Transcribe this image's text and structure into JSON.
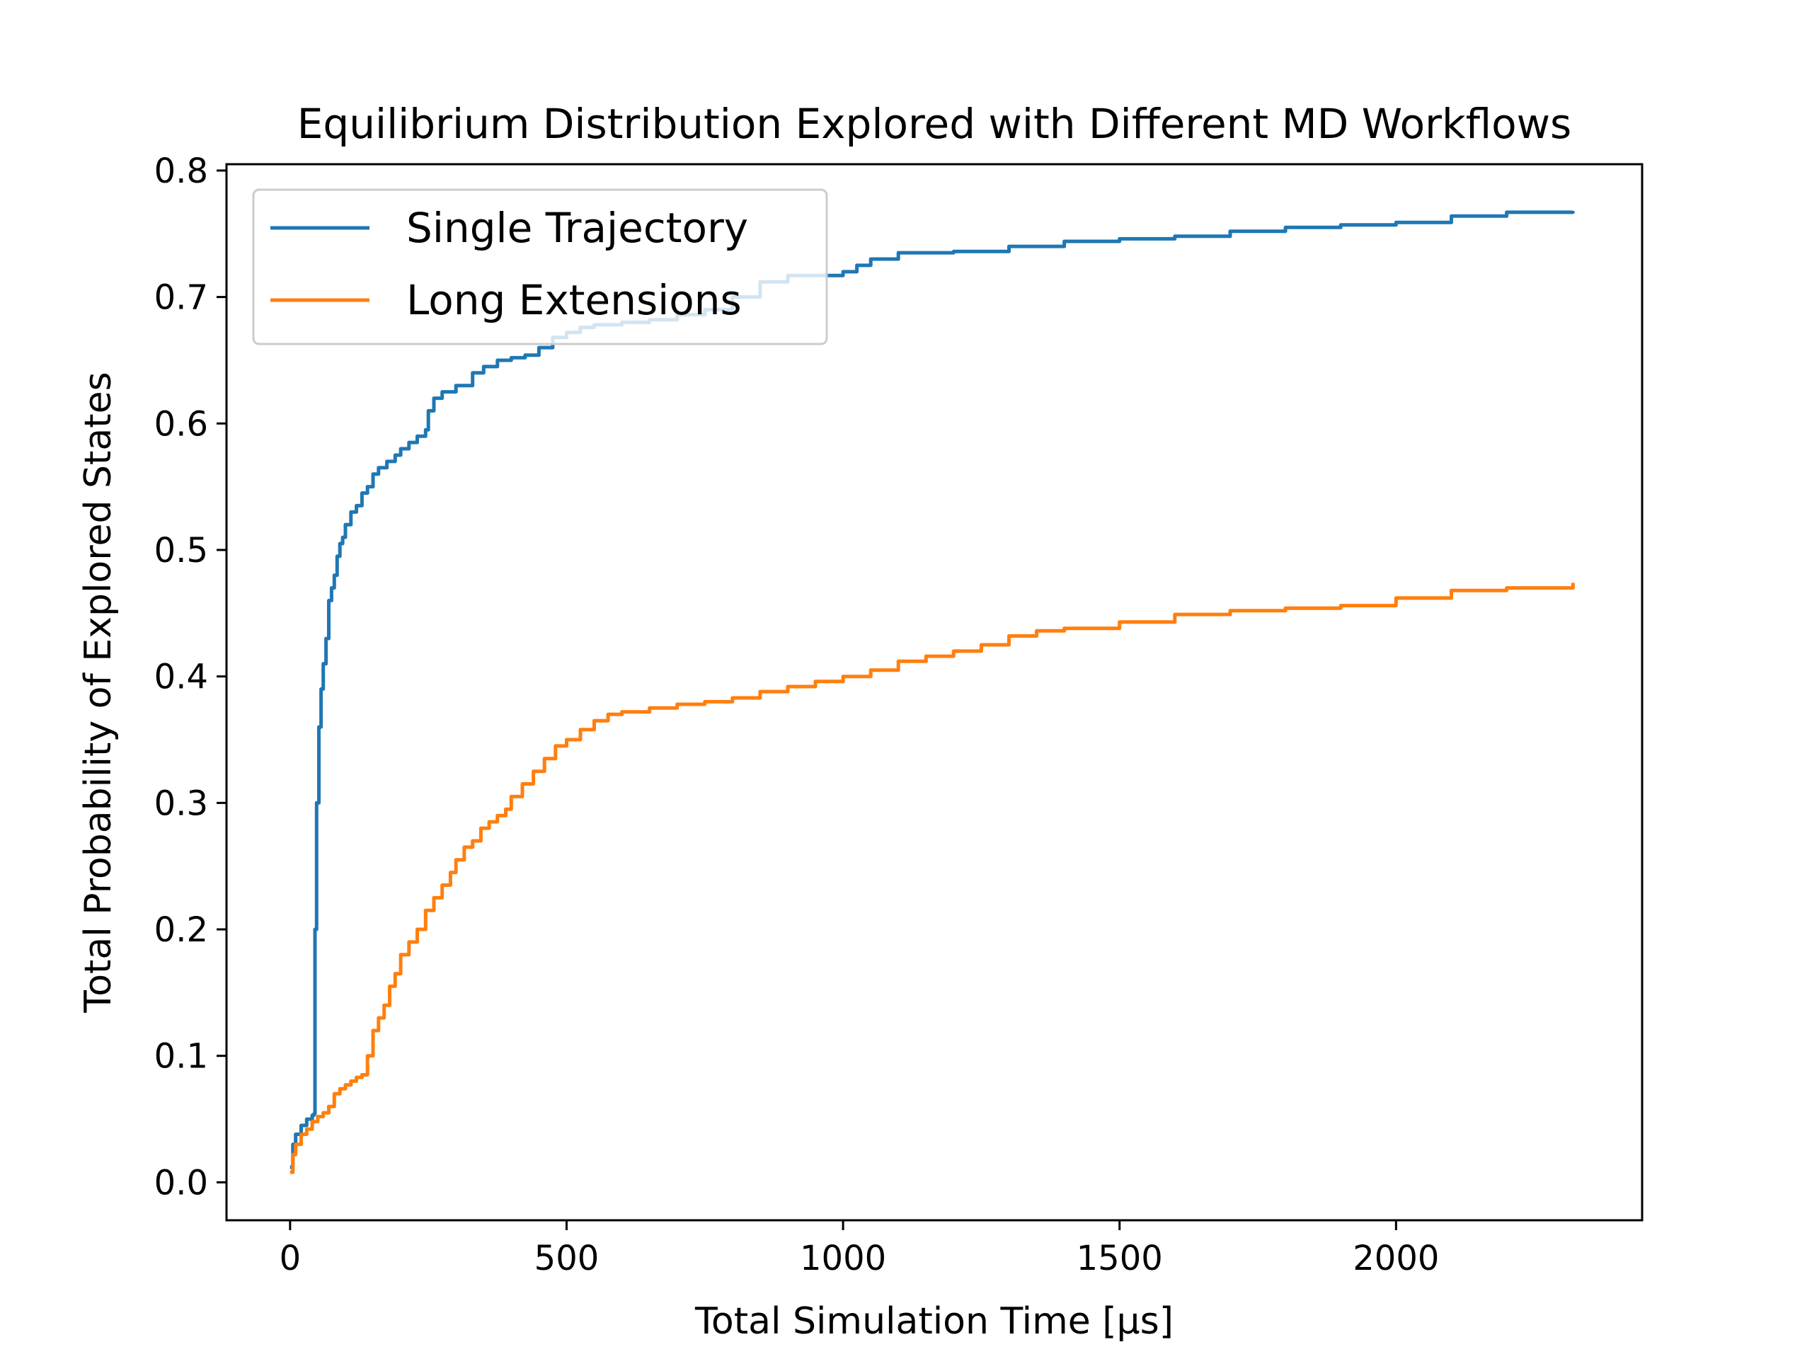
{
  "chart_data": {
    "type": "line",
    "title": "Equilibrium Distribution Explored with Different MD Workflows",
    "xlabel": "Total Simulation Time [μs]",
    "ylabel": "Total Probability of Explored States",
    "xlim": [
      -115,
      2445
    ],
    "ylim": [
      -0.03,
      0.805
    ],
    "xticks": [
      0,
      500,
      1000,
      1500,
      2000
    ],
    "xtick_labels": [
      "0",
      "500",
      "1000",
      "1500",
      "2000"
    ],
    "yticks": [
      0.0,
      0.1,
      0.2,
      0.3,
      0.4,
      0.5,
      0.6,
      0.7,
      0.8
    ],
    "ytick_labels": [
      "0.0",
      "0.1",
      "0.2",
      "0.3",
      "0.4",
      "0.5",
      "0.6",
      "0.7",
      "0.8"
    ],
    "grid": false,
    "legend_position": "upper-left",
    "series": [
      {
        "name": "Single Trajectory",
        "color": "#1f77b4",
        "x": [
          0,
          5,
          10,
          20,
          30,
          40,
          43,
          45,
          48,
          52,
          56,
          60,
          65,
          70,
          75,
          80,
          85,
          90,
          95,
          100,
          110,
          120,
          130,
          140,
          150,
          160,
          175,
          190,
          200,
          215,
          230,
          245,
          250,
          260,
          275,
          300,
          330,
          350,
          375,
          400,
          425,
          450,
          475,
          500,
          525,
          550,
          600,
          650,
          700,
          750,
          800,
          850,
          900,
          950,
          1000,
          1025,
          1050,
          1100,
          1200,
          1300,
          1400,
          1500,
          1600,
          1700,
          1800,
          1900,
          2000,
          2100,
          2200,
          2320
        ],
        "y": [
          0.012,
          0.03,
          0.038,
          0.045,
          0.05,
          0.053,
          0.054,
          0.2,
          0.3,
          0.36,
          0.39,
          0.41,
          0.43,
          0.46,
          0.47,
          0.48,
          0.495,
          0.505,
          0.51,
          0.52,
          0.53,
          0.535,
          0.545,
          0.55,
          0.56,
          0.565,
          0.57,
          0.575,
          0.58,
          0.585,
          0.59,
          0.595,
          0.61,
          0.62,
          0.625,
          0.63,
          0.64,
          0.645,
          0.65,
          0.652,
          0.654,
          0.66,
          0.668,
          0.672,
          0.676,
          0.678,
          0.68,
          0.682,
          0.686,
          0.69,
          0.7,
          0.712,
          0.717,
          0.717,
          0.72,
          0.725,
          0.73,
          0.735,
          0.736,
          0.74,
          0.744,
          0.746,
          0.748,
          0.752,
          0.755,
          0.757,
          0.759,
          0.764,
          0.767,
          0.768
        ]
      },
      {
        "name": "Long Extensions",
        "color": "#ff7f0e",
        "x": [
          0,
          5,
          10,
          20,
          30,
          40,
          50,
          60,
          70,
          80,
          90,
          100,
          110,
          120,
          130,
          140,
          150,
          160,
          170,
          180,
          190,
          200,
          215,
          230,
          245,
          260,
          275,
          290,
          300,
          315,
          330,
          345,
          360,
          375,
          390,
          400,
          420,
          440,
          460,
          480,
          500,
          525,
          550,
          575,
          600,
          650,
          700,
          750,
          800,
          850,
          900,
          950,
          1000,
          1050,
          1100,
          1150,
          1200,
          1250,
          1300,
          1350,
          1400,
          1500,
          1600,
          1700,
          1800,
          1900,
          2000,
          2100,
          2200,
          2320
        ],
        "y": [
          0.008,
          0.022,
          0.03,
          0.038,
          0.042,
          0.048,
          0.052,
          0.055,
          0.06,
          0.07,
          0.074,
          0.077,
          0.08,
          0.083,
          0.085,
          0.1,
          0.12,
          0.13,
          0.14,
          0.155,
          0.165,
          0.18,
          0.19,
          0.2,
          0.215,
          0.225,
          0.235,
          0.245,
          0.255,
          0.265,
          0.27,
          0.28,
          0.285,
          0.29,
          0.295,
          0.305,
          0.315,
          0.325,
          0.335,
          0.345,
          0.35,
          0.358,
          0.365,
          0.37,
          0.372,
          0.375,
          0.378,
          0.38,
          0.383,
          0.388,
          0.392,
          0.396,
          0.4,
          0.405,
          0.412,
          0.416,
          0.42,
          0.425,
          0.432,
          0.436,
          0.438,
          0.443,
          0.449,
          0.452,
          0.454,
          0.456,
          0.462,
          0.468,
          0.47,
          0.474
        ]
      }
    ]
  }
}
